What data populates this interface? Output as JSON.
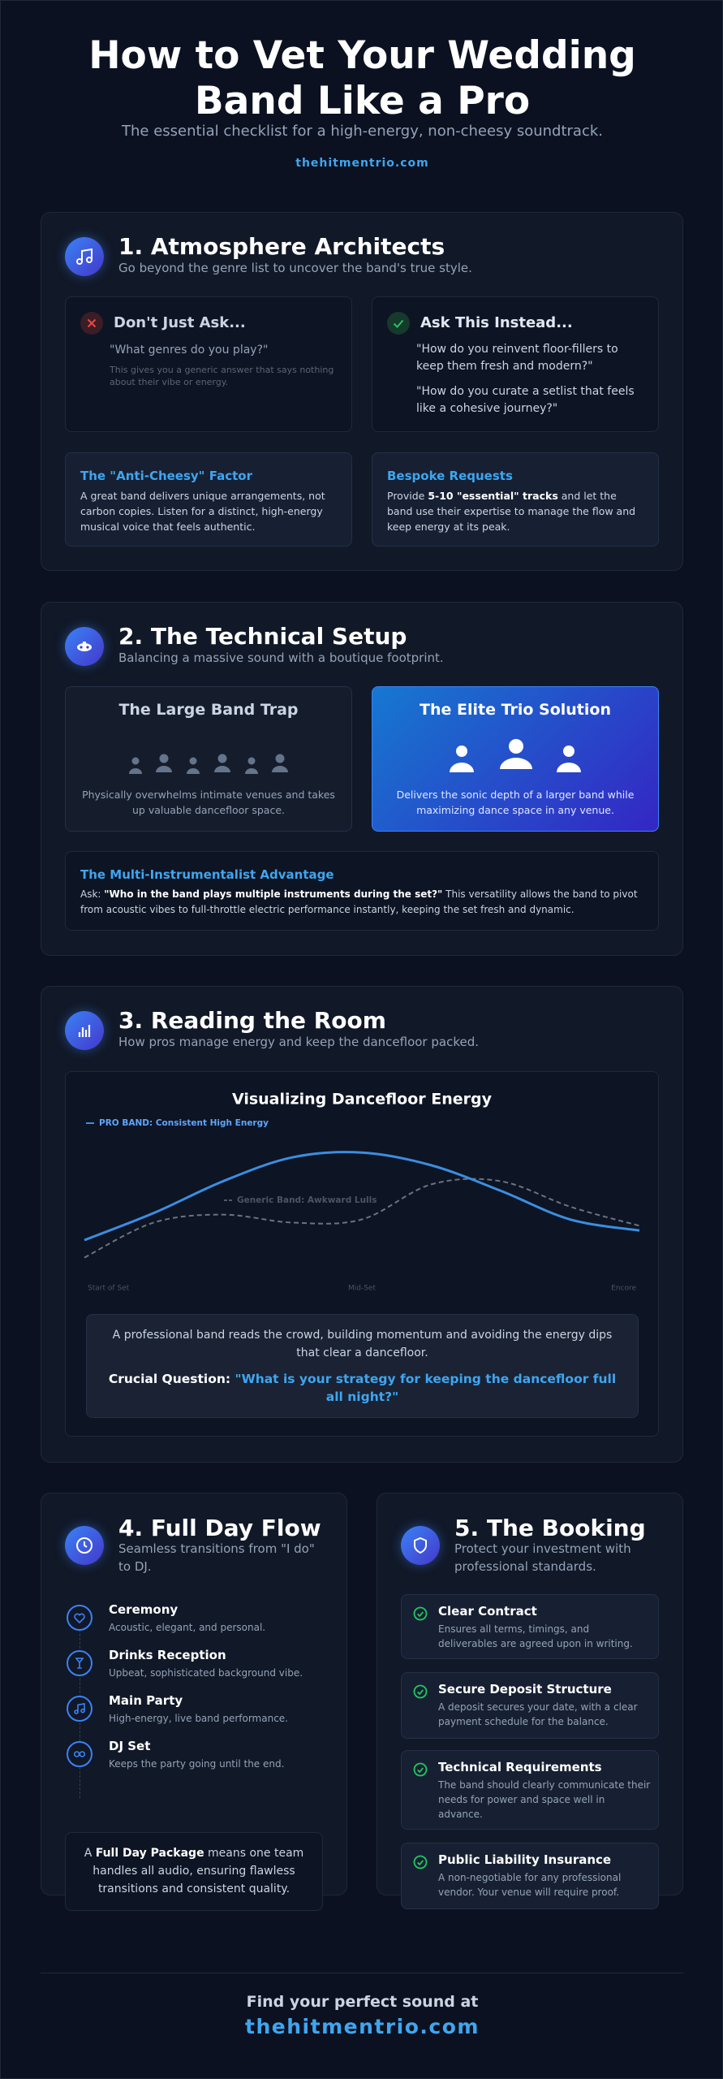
{
  "header": {
    "title": "How to Vet Your Wedding Band Like a Pro",
    "subtitle": "The essential checklist for a high-energy, non-cheesy soundtrack.",
    "site": "thehitmentrio.com"
  },
  "sections": [
    {
      "title": "1. Atmosphere Architects",
      "subtitle": "Go beyond the genre list to uncover the band's true style.",
      "dont": {
        "title": "Don't Just Ask...",
        "quote": "\"What genres do you play?\"",
        "note": "This gives you a generic answer that says nothing about their vibe or energy."
      },
      "ask": {
        "title": "Ask This Instead...",
        "quotes": [
          "\"How do you reinvent floor-fillers to keep them fresh and modern?\"",
          "\"How do you curate a setlist that feels like a cohesive journey?\""
        ]
      },
      "tips": [
        {
          "title": "The \"Anti-Cheesy\" Factor",
          "text": "A great band delivers unique arrangements, not carbon copies. Listen for a distinct, high-energy musical voice that feels authentic."
        },
        {
          "title": "Bespoke Requests",
          "before": "Provide ",
          "bold": "5-10 \"essential\" tracks",
          "after": " and let the band use their expertise to manage the flow and keep energy at its peak."
        }
      ]
    },
    {
      "title": "2. The Technical Setup",
      "subtitle": "Balancing a massive sound with a boutique footprint.",
      "compare": [
        {
          "title": "The Large Band Trap",
          "text": "Physically overwhelms intimate venues and takes up valuable dancefloor space."
        },
        {
          "title": "The Elite Trio Solution",
          "text": "Delivers the sonic depth of a larger band while maximizing dance space in any venue."
        }
      ],
      "advantage": {
        "title": "The Multi-Instrumentalist Advantage",
        "lead": "Ask: ",
        "bold": "\"Who in the band plays multiple instruments during the set?\"",
        "text": " This versatility allows the band to pivot from acoustic vibes to full-throttle electric performance instantly, keeping the set fresh and dynamic."
      }
    },
    {
      "title": "3. Reading the Room",
      "subtitle": "How pros manage energy and keep the dancefloor packed.",
      "insight": {
        "text": "A professional band reads the crowd, building momentum and avoiding the energy dips that clear a dancefloor.",
        "label": "Crucial Question:",
        "question": "\"What is your strategy for keeping the dancefloor full all night?\""
      }
    },
    {
      "title": "4. Full Day Flow",
      "subtitle": "Seamless transitions from \"I do\" to DJ.",
      "steps": [
        {
          "title": "Ceremony",
          "text": "Acoustic, elegant, and personal."
        },
        {
          "title": "Drinks Reception",
          "text": "Upbeat, sophisticated background vibe."
        },
        {
          "title": "Main Party",
          "text": "High-energy, live band performance."
        },
        {
          "title": "DJ Set",
          "text": "Keeps the party going until the end."
        }
      ],
      "package": {
        "before": "A ",
        "bold": "Full Day Package",
        "after": " means one team handles all audio, ensuring flawless transitions and consistent quality."
      }
    },
    {
      "title": "5. The Booking",
      "subtitle": "Protect your investment with professional standards.",
      "items": [
        {
          "title": "Clear Contract",
          "text": "Ensures all terms, timings, and deliverables are agreed upon in writing."
        },
        {
          "title": "Secure Deposit Structure",
          "text": "A deposit secures your date, with a clear payment schedule for the balance."
        },
        {
          "title": "Technical Requirements",
          "text": "The band should clearly communicate their needs for power and space well in advance."
        },
        {
          "title": "Public Liability Insurance",
          "text": "A non-negotiable for any professional vendor. Your venue will require proof."
        }
      ]
    }
  ],
  "chart_data": {
    "type": "line",
    "title": "Visualizing Dancefloor Energy",
    "categories": [
      "Start of Set",
      null,
      null,
      null,
      "Mid-Set",
      null,
      null,
      null,
      "Encore"
    ],
    "ylim": [
      0,
      100
    ],
    "series": [
      {
        "name": "PRO BAND: Consistent High Energy",
        "color": "#3b8ee0",
        "values": [
          25,
          42,
          62,
          77,
          80,
          72,
          56,
          38,
          31
        ]
      },
      {
        "name": "Generic Band: Awkward Lulls",
        "color": "#6b7280",
        "values": [
          14,
          36,
          41,
          36,
          38,
          60,
          62,
          46,
          34
        ]
      }
    ]
  },
  "footer": {
    "text": "Find your perfect sound at",
    "site": "thehitmentrio.com"
  }
}
